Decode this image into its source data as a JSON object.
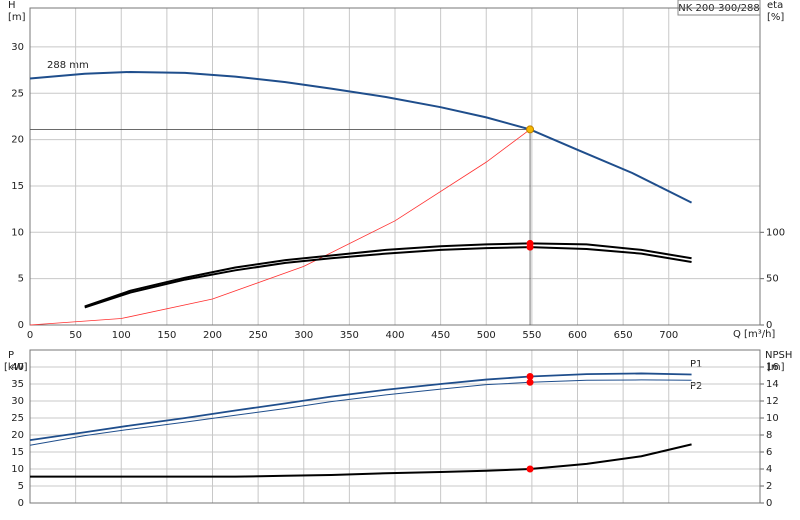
{
  "chart_data": [
    {
      "type": "line",
      "title": "NK 200-300/288",
      "ylabel": "H",
      "ylabel_unit": "[m]",
      "y2label": "eta",
      "y2label_unit": "[%]",
      "xlabel": "Q [m³/h]",
      "xlim": [
        0,
        800
      ],
      "ylim": [
        0,
        34.2
      ],
      "y2lim": [
        0,
        342
      ],
      "xticks": [
        0,
        50,
        100,
        150,
        200,
        250,
        300,
        350,
        400,
        450,
        500,
        550,
        600,
        650,
        700
      ],
      "yticks": [
        0,
        5,
        10,
        15,
        20,
        25,
        30
      ],
      "y2ticks": [
        0,
        50,
        100
      ],
      "grid": true,
      "xtick_labels": true,
      "series": [
        {
          "name": "288 mm",
          "color": "#1f4e8c",
          "width": 2,
          "x": [
            0,
            60,
            110,
            170,
            225,
            280,
            330,
            390,
            450,
            500,
            548,
            600,
            660,
            725
          ],
          "values": [
            26.6,
            27.1,
            27.3,
            27.2,
            26.8,
            26.2,
            25.5,
            24.6,
            23.5,
            22.4,
            21.1,
            18.9,
            16.4,
            13.2
          ]
        },
        {
          "color": "#ff3030",
          "width": 0.8,
          "x": [
            0,
            100,
            200,
            300,
            400,
            500,
            548
          ],
          "values": [
            0,
            0.7,
            2.81,
            6.32,
            11.24,
            17.57,
            21.1
          ]
        },
        {
          "color": "#000000",
          "width": 2,
          "axis": "y2",
          "x": [
            60,
            110,
            170,
            225,
            280,
            330,
            390,
            450,
            500,
            548,
            610,
            670,
            725
          ],
          "values": [
            20,
            37,
            51,
            62,
            70,
            75,
            81,
            85,
            87,
            88,
            87,
            81,
            72
          ]
        },
        {
          "color": "#000000",
          "width": 2,
          "axis": "y2",
          "x": [
            60,
            110,
            170,
            225,
            280,
            330,
            390,
            450,
            500,
            548,
            610,
            670,
            725
          ],
          "values": [
            19,
            35,
            49,
            59,
            67,
            72,
            77,
            81,
            83,
            84,
            82,
            77,
            68
          ]
        }
      ],
      "points": [
        {
          "x": 548,
          "y": 21.1,
          "color": "#f5b800",
          "guides": true
        },
        {
          "x": 548,
          "y": 88,
          "axis": "y2",
          "color": "#ff0000"
        },
        {
          "x": 548,
          "y": 84,
          "axis": "y2",
          "color": "#ff0000"
        }
      ]
    },
    {
      "type": "line",
      "ylabel": "P",
      "ylabel_unit": "[kW]",
      "y2label": "NPSH",
      "y2label_unit": "[m]",
      "xlim": [
        0,
        800
      ],
      "ylim": [
        0,
        45
      ],
      "y2lim": [
        0,
        18
      ],
      "xticks": [
        0,
        50,
        100,
        150,
        200,
        250,
        300,
        350,
        400,
        450,
        500,
        550,
        600,
        650,
        700
      ],
      "yticks": [
        0,
        5,
        10,
        15,
        20,
        25,
        30,
        35,
        40
      ],
      "y2ticks": [
        0,
        2,
        4,
        6,
        8,
        10,
        12,
        14,
        16
      ],
      "grid": true,
      "xtick_labels": false,
      "series": [
        {
          "name": "P1",
          "color": "#1f4e8c",
          "width": 1.8,
          "x": [
            0,
            60,
            110,
            170,
            225,
            280,
            330,
            390,
            450,
            500,
            548,
            610,
            670,
            725
          ],
          "values": [
            18.5,
            20.8,
            22.8,
            25,
            27.2,
            29.3,
            31.3,
            33.3,
            35,
            36.3,
            37.2,
            37.9,
            38.1,
            37.8
          ]
        },
        {
          "name": "P2",
          "color": "#1f4e8c",
          "width": 1,
          "x": [
            0,
            60,
            110,
            170,
            225,
            280,
            330,
            390,
            450,
            500,
            548,
            610,
            670,
            725
          ],
          "values": [
            17,
            19.8,
            21.7,
            23.8,
            25.8,
            27.8,
            29.8,
            31.8,
            33.5,
            34.8,
            35.5,
            36.1,
            36.2,
            36.1
          ]
        },
        {
          "color": "#000000",
          "width": 2,
          "axis": "y2",
          "x": [
            0,
            60,
            170,
            225,
            280,
            330,
            390,
            450,
            500,
            548,
            610,
            670,
            725
          ],
          "values": [
            3.1,
            3.1,
            3.1,
            3.1,
            3.2,
            3.3,
            3.5,
            3.65,
            3.8,
            4,
            4.6,
            5.5,
            6.9
          ]
        }
      ],
      "points": [
        {
          "x": 548,
          "y": 37.2,
          "color": "#ff0000"
        },
        {
          "x": 548,
          "y": 35.5,
          "color": "#ff0000"
        },
        {
          "x": 548,
          "y": 4,
          "axis": "y2",
          "color": "#ff0000"
        }
      ]
    }
  ]
}
